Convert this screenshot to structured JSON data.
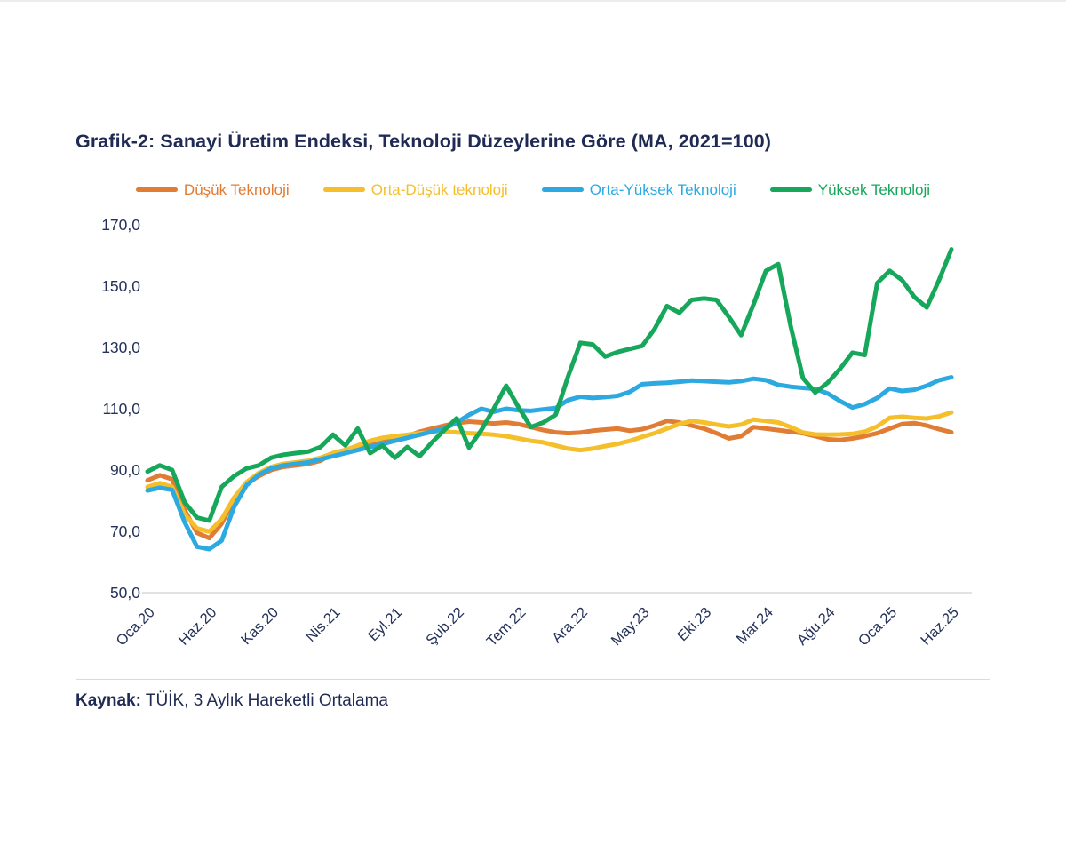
{
  "page": {
    "title": "Grafik-2: Sanayi Üretim Endeksi, Teknoloji Düzeylerine Göre (MA, 2021=100)",
    "source_label": "Kaynak:",
    "source_text": " TÜİK, 3 Aylık Hareketli Ortalama"
  },
  "colors": {
    "title_text": "#1F2A55",
    "axis_text": "#243158",
    "axis_line": "#D9D9D9",
    "card_border": "#DADADA"
  },
  "chart_data": {
    "type": "line",
    "title": "Grafik-2: Sanayi Üretim Endeksi, Teknoloji Düzeylerine Göre (MA, 2021=100)",
    "subtitle": "",
    "source": "Kaynak: TÜİK, 3 Aylık Hareketli Ortalama",
    "legend_position": "top",
    "grid": "bottom-axis-line-only",
    "ylim": [
      50,
      170
    ],
    "y_ticks": [
      {
        "value": 170,
        "label": "170,0"
      },
      {
        "value": 150,
        "label": "150,0"
      },
      {
        "value": 130,
        "label": "130,0"
      },
      {
        "value": 110,
        "label": "110,0"
      },
      {
        "value": 90,
        "label": "90,0"
      },
      {
        "value": 70,
        "label": "70,0"
      },
      {
        "value": 50,
        "label": "50,0"
      }
    ],
    "x_unit": "month",
    "x_range": [
      "Oca.20",
      "Haz.25"
    ],
    "n_points": 66,
    "x_tick_every": 5,
    "x_tick_labels": [
      "Oca.20",
      "Haz.20",
      "Kas.20",
      "Nis.21",
      "Eyl.21",
      "Şub.22",
      "Tem.22",
      "Ara.22",
      "May.23",
      "Eki.23",
      "Mar.24",
      "Ağu.24",
      "Oca.25",
      "Haz.25"
    ],
    "series": [
      {
        "name": "Düşük Teknoloji",
        "color": "#E07C33",
        "values": [
          86.6,
          88.3,
          87.0,
          77.0,
          69.5,
          67.8,
          72.5,
          80.5,
          85.5,
          88.0,
          90.0,
          91.0,
          91.5,
          92.0,
          93.0,
          95.5,
          96.5,
          97.3,
          98.0,
          99.0,
          100.0,
          101.0,
          102.5,
          103.5,
          104.5,
          105.3,
          105.8,
          105.5,
          105.2,
          105.5,
          105.0,
          104.0,
          103.0,
          102.3,
          102.0,
          102.2,
          102.8,
          103.2,
          103.5,
          102.8,
          103.3,
          104.5,
          106.0,
          105.5,
          104.5,
          103.5,
          102.0,
          100.3,
          101.0,
          104.0,
          103.5,
          103.0,
          102.5,
          102.0,
          101.0,
          100.0,
          99.8,
          100.3,
          101.0,
          102.0,
          103.5,
          105.0,
          105.3,
          104.5,
          103.3,
          102.3
        ]
      },
      {
        "name": "Orta-Düşük teknoloji",
        "color": "#F4BF2A",
        "values": [
          84.5,
          85.7,
          84.5,
          75.5,
          71.0,
          69.9,
          74.0,
          81.0,
          86.0,
          89.0,
          91.0,
          92.0,
          92.5,
          93.0,
          94.0,
          95.5,
          96.5,
          98.0,
          99.5,
          100.5,
          101.0,
          101.5,
          102.0,
          102.3,
          102.5,
          102.3,
          102.0,
          101.8,
          101.5,
          101.0,
          100.3,
          99.5,
          99.0,
          98.0,
          97.0,
          96.5,
          97.0,
          97.8,
          98.5,
          99.5,
          100.8,
          102.0,
          103.5,
          105.0,
          106.0,
          105.5,
          104.8,
          104.2,
          104.8,
          106.5,
          106.0,
          105.5,
          104.0,
          102.2,
          101.6,
          101.5,
          101.6,
          101.8,
          102.5,
          104.2,
          107.0,
          107.4,
          107.0,
          106.8,
          107.5,
          108.8
        ]
      },
      {
        "name": "Orta-Yüksek Teknoloji",
        "color": "#2BA9E0",
        "values": [
          83.3,
          84.2,
          83.5,
          73.0,
          65.0,
          64.2,
          67.0,
          78.0,
          85.0,
          88.5,
          90.5,
          91.5,
          92.0,
          92.5,
          93.5,
          94.5,
          95.5,
          96.5,
          97.5,
          98.5,
          99.5,
          100.5,
          101.5,
          102.5,
          103.5,
          105.5,
          108.0,
          110.0,
          109.0,
          110.0,
          109.5,
          109.3,
          109.8,
          110.2,
          112.8,
          113.9,
          113.5,
          113.8,
          114.2,
          115.5,
          118.0,
          118.3,
          118.5,
          118.8,
          119.2,
          119.0,
          118.8,
          118.6,
          119.0,
          119.8,
          119.3,
          117.8,
          117.2,
          116.8,
          116.5,
          115.0,
          112.5,
          110.4,
          111.5,
          113.5,
          116.6,
          115.8,
          116.2,
          117.5,
          119.3,
          120.3
        ]
      },
      {
        "name": "Yüksek Teknoloji",
        "color": "#17A75B",
        "values": [
          89.5,
          91.5,
          90.0,
          79.5,
          74.5,
          73.5,
          84.5,
          88.0,
          90.5,
          91.5,
          94.0,
          95.0,
          95.5,
          96.0,
          97.5,
          101.5,
          98.0,
          103.5,
          95.5,
          98.0,
          94.0,
          97.5,
          94.5,
          99.0,
          103.0,
          106.9,
          97.3,
          103.0,
          110.0,
          117.5,
          110.5,
          104.0,
          105.5,
          108.0,
          120.5,
          131.5,
          131.0,
          127.0,
          128.5,
          129.5,
          130.5,
          136.0,
          143.5,
          141.3,
          145.5,
          146.0,
          145.5,
          140.0,
          134.0,
          144.0,
          155.0,
          157.2,
          137.0,
          120.0,
          115.3,
          118.5,
          123.0,
          128.3,
          127.5,
          151.0,
          155.0,
          152.0,
          146.5,
          143.0,
          152.0,
          162.0
        ]
      }
    ]
  }
}
